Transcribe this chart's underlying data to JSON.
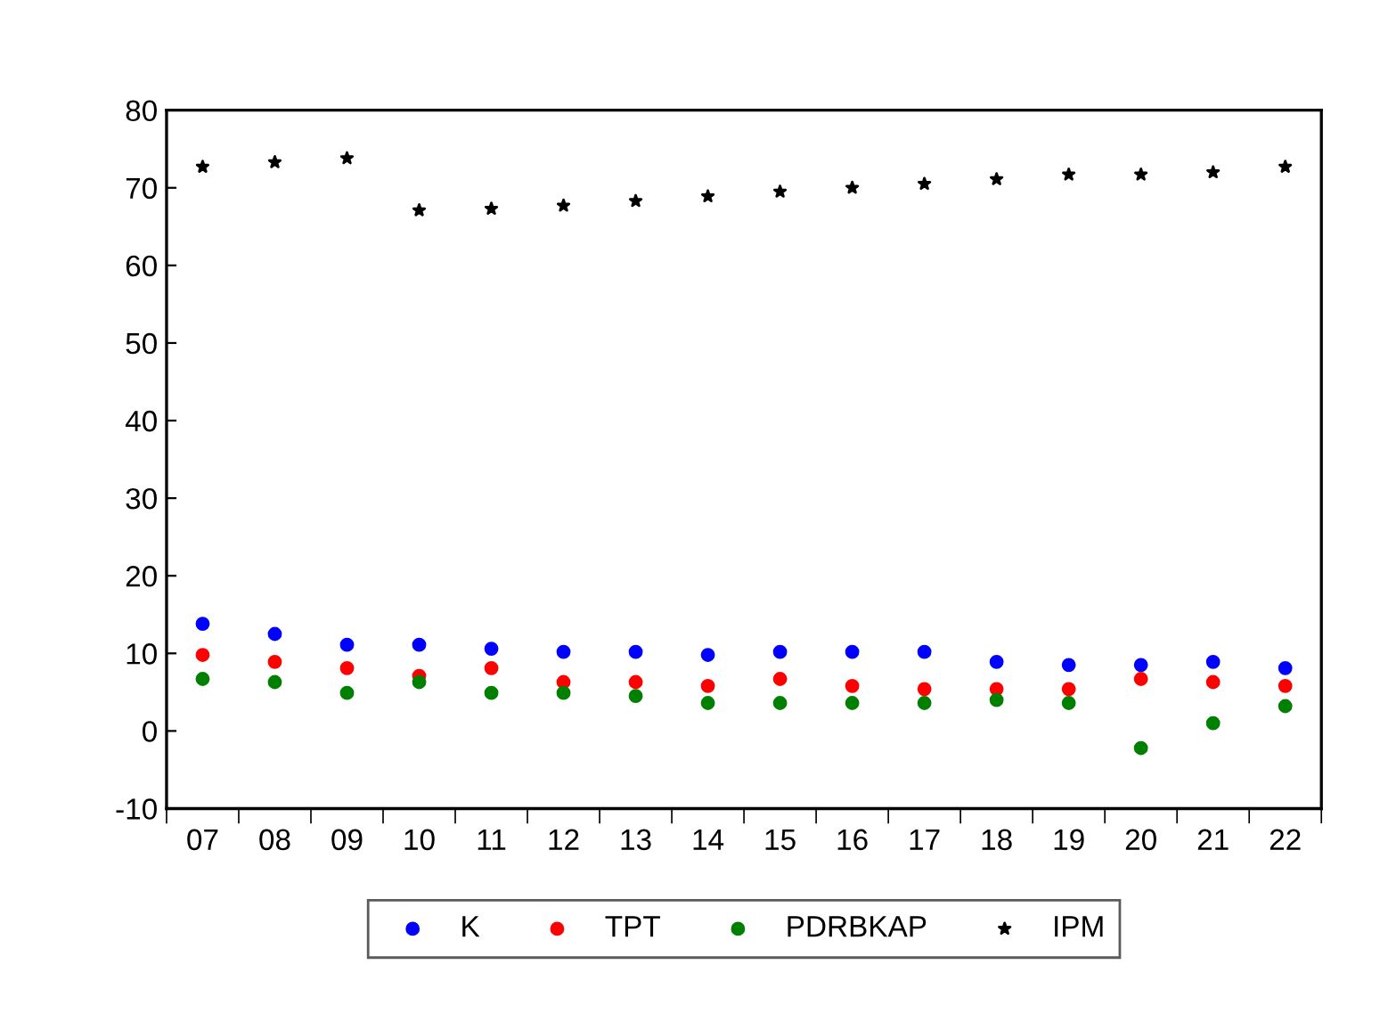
{
  "chart_data": {
    "type": "scatter",
    "categories": [
      "07",
      "08",
      "09",
      "10",
      "11",
      "12",
      "13",
      "14",
      "15",
      "16",
      "17",
      "18",
      "19",
      "20",
      "21",
      "22"
    ],
    "series": [
      {
        "name": "K",
        "color": "#0000ff",
        "marker": "circle",
        "values": [
          13.8,
          12.5,
          11.1,
          11.1,
          10.6,
          10.2,
          10.2,
          9.8,
          10.2,
          10.2,
          10.2,
          8.9,
          8.5,
          8.5,
          8.9,
          8.1
        ]
      },
      {
        "name": "TPT",
        "color": "#ff0000",
        "marker": "circle",
        "values": [
          9.8,
          8.9,
          8.1,
          7.1,
          8.1,
          6.3,
          6.3,
          5.8,
          6.7,
          5.8,
          5.4,
          5.4,
          5.4,
          6.7,
          6.3,
          5.8
        ]
      },
      {
        "name": "PDRBKAP",
        "color": "#008000",
        "marker": "circle",
        "values": [
          6.7,
          6.3,
          4.9,
          6.3,
          4.9,
          4.9,
          4.5,
          3.6,
          3.6,
          3.6,
          3.6,
          4.0,
          3.6,
          -2.2,
          1.0,
          3.2
        ]
      },
      {
        "name": "IPM",
        "color": "#000000",
        "marker": "star",
        "values": [
          72.7,
          73.3,
          73.8,
          67.1,
          67.3,
          67.7,
          68.3,
          68.9,
          69.5,
          70.0,
          70.5,
          71.1,
          71.7,
          71.7,
          72.0,
          72.7
        ]
      }
    ],
    "ylim": [
      -10,
      80
    ],
    "yticks": [
      -10,
      0,
      10,
      20,
      30,
      40,
      50,
      60,
      70,
      80
    ],
    "grid": false,
    "legend": "bottom"
  }
}
